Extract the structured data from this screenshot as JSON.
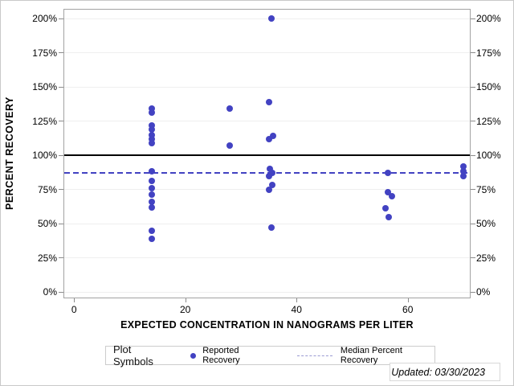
{
  "figure": {
    "footer_updated": "Updated: 03/30/2023"
  },
  "legend": {
    "title": "Plot Symbols",
    "marker_label": "Reported Recovery",
    "dash_label": "Median Percent Recovery"
  },
  "colors": {
    "marker": "#4242c2",
    "median_line": "#4242c2",
    "legend_dash": "#9a9ad2",
    "reference_line": "#000000",
    "gridline": "#efefef",
    "frame": "#a3a3a3",
    "tick": "#8b8b8b"
  },
  "chart_data": {
    "type": "scatter",
    "title": "",
    "xlabel": "EXPECTED CONCENTRATION IN NANOGRAMS PER LITER",
    "ylabel": "PERCENT RECOVERY",
    "x_ticks": [
      0,
      20,
      40,
      60
    ],
    "y_ticks": [
      0,
      25,
      50,
      75,
      100,
      125,
      150,
      175,
      200
    ],
    "y_tick_suffix": "%",
    "xlim": [
      -1.9,
      71.3
    ],
    "ylim": [
      -4.7,
      207.1
    ],
    "grid": "horizontal-only",
    "y_axis_sides": "both",
    "legend_position": "bottom",
    "reference_line_y": 100,
    "median_percent_recovery": 87,
    "series": [
      {
        "name": "Reported Recovery",
        "points": [
          [
            14,
            134
          ],
          [
            14,
            131
          ],
          [
            14,
            122
          ],
          [
            14,
            119
          ],
          [
            14,
            115
          ],
          [
            14,
            112
          ],
          [
            14,
            109
          ],
          [
            14,
            88
          ],
          [
            14,
            81
          ],
          [
            14,
            76
          ],
          [
            14,
            71
          ],
          [
            14,
            66
          ],
          [
            14,
            62
          ],
          [
            14,
            45
          ],
          [
            14,
            39
          ],
          [
            28,
            134
          ],
          [
            28,
            107
          ],
          [
            35.5,
            200
          ],
          [
            35,
            139
          ],
          [
            35.8,
            114
          ],
          [
            35.1,
            112
          ],
          [
            35.2,
            90
          ],
          [
            35.6,
            87
          ],
          [
            35,
            85
          ],
          [
            35.6,
            78
          ],
          [
            35.1,
            75
          ],
          [
            35.5,
            47
          ],
          [
            56.5,
            87
          ],
          [
            56.5,
            73
          ],
          [
            57.2,
            70
          ],
          [
            56,
            61
          ],
          [
            56.6,
            55
          ],
          [
            70,
            92
          ],
          [
            70,
            88
          ],
          [
            70,
            85
          ]
        ]
      }
    ]
  }
}
